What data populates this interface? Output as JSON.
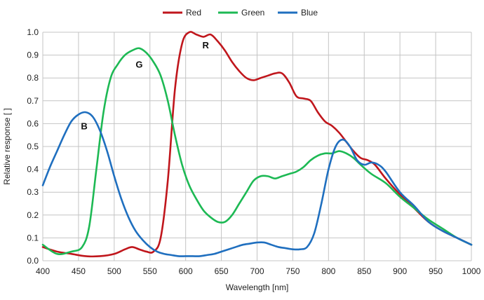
{
  "chart_data": {
    "type": "line",
    "title": "",
    "xlabel": "Wavelength [nm]",
    "ylabel": "Relative response [ ]",
    "xlim": [
      400,
      1000
    ],
    "ylim": [
      0,
      1.0
    ],
    "x_ticks": [
      "400",
      "450",
      "500",
      "550",
      "600",
      "650",
      "700",
      "750",
      "800",
      "850",
      "900",
      "950",
      "1000"
    ],
    "y_ticks": [
      "0.0",
      "0.1",
      "0.2",
      "0.3",
      "0.4",
      "0.5",
      "0.6",
      "0.7",
      "0.8",
      "0.9",
      "1.0"
    ],
    "grid": true,
    "legend": "top-center",
    "series": [
      {
        "name": "Red",
        "color": "#C0161C",
        "x": [
          400,
          420,
          440,
          460,
          480,
          500,
          515,
          525,
          535,
          545,
          555,
          565,
          575,
          585,
          595,
          605,
          615,
          625,
          635,
          645,
          655,
          665,
          675,
          685,
          695,
          705,
          715,
          725,
          735,
          745,
          755,
          765,
          775,
          785,
          795,
          805,
          815,
          825,
          835,
          845,
          855,
          865,
          880,
          900,
          920,
          940,
          960,
          980,
          1000
        ],
        "y": [
          0.06,
          0.04,
          0.03,
          0.02,
          0.02,
          0.03,
          0.05,
          0.06,
          0.05,
          0.04,
          0.04,
          0.1,
          0.35,
          0.75,
          0.95,
          1.0,
          0.99,
          0.98,
          0.99,
          0.96,
          0.92,
          0.87,
          0.83,
          0.8,
          0.79,
          0.8,
          0.81,
          0.82,
          0.82,
          0.78,
          0.72,
          0.71,
          0.7,
          0.65,
          0.61,
          0.59,
          0.56,
          0.52,
          0.48,
          0.45,
          0.44,
          0.42,
          0.36,
          0.29,
          0.23,
          0.17,
          0.13,
          0.1,
          0.07
        ]
      },
      {
        "name": "Green",
        "color": "#1DB954",
        "x": [
          400,
          420,
          440,
          455,
          465,
          475,
          485,
          495,
          505,
          515,
          525,
          535,
          545,
          555,
          565,
          575,
          585,
          595,
          605,
          615,
          625,
          635,
          645,
          655,
          665,
          675,
          685,
          695,
          705,
          715,
          725,
          735,
          745,
          755,
          765,
          775,
          785,
          795,
          805,
          815,
          825,
          835,
          845,
          860,
          880,
          900,
          920,
          940,
          960,
          980,
          1000
        ],
        "y": [
          0.07,
          0.03,
          0.04,
          0.06,
          0.15,
          0.4,
          0.65,
          0.8,
          0.86,
          0.9,
          0.92,
          0.93,
          0.91,
          0.87,
          0.81,
          0.7,
          0.55,
          0.42,
          0.33,
          0.27,
          0.22,
          0.19,
          0.17,
          0.17,
          0.2,
          0.25,
          0.3,
          0.35,
          0.37,
          0.37,
          0.36,
          0.37,
          0.38,
          0.39,
          0.41,
          0.44,
          0.46,
          0.47,
          0.47,
          0.48,
          0.47,
          0.45,
          0.42,
          0.38,
          0.34,
          0.28,
          0.23,
          0.18,
          0.14,
          0.1,
          0.07
        ]
      },
      {
        "name": "Blue",
        "color": "#1F6FBF",
        "x": [
          400,
          410,
          420,
          430,
          440,
          450,
          460,
          470,
          480,
          490,
          500,
          510,
          520,
          530,
          540,
          550,
          560,
          570,
          580,
          590,
          600,
          610,
          620,
          630,
          640,
          650,
          660,
          670,
          680,
          690,
          700,
          710,
          720,
          730,
          740,
          750,
          760,
          770,
          780,
          790,
          800,
          810,
          820,
          830,
          840,
          850,
          860,
          870,
          880,
          900,
          920,
          940,
          960,
          980,
          1000
        ],
        "y": [
          0.33,
          0.41,
          0.48,
          0.55,
          0.61,
          0.64,
          0.65,
          0.63,
          0.57,
          0.48,
          0.37,
          0.27,
          0.19,
          0.13,
          0.09,
          0.06,
          0.04,
          0.03,
          0.025,
          0.02,
          0.02,
          0.02,
          0.02,
          0.025,
          0.03,
          0.04,
          0.05,
          0.06,
          0.07,
          0.075,
          0.08,
          0.08,
          0.07,
          0.06,
          0.055,
          0.05,
          0.05,
          0.06,
          0.12,
          0.25,
          0.4,
          0.5,
          0.53,
          0.5,
          0.44,
          0.42,
          0.43,
          0.42,
          0.39,
          0.3,
          0.24,
          0.17,
          0.13,
          0.1,
          0.07
        ]
      }
    ],
    "annotations": [
      {
        "text": "B",
        "x": 458,
        "y": 0.575
      },
      {
        "text": "G",
        "x": 535,
        "y": 0.845
      },
      {
        "text": "R",
        "x": 628,
        "y": 0.93
      }
    ]
  }
}
